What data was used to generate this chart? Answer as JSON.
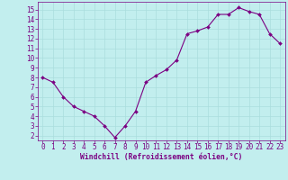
{
  "x": [
    0,
    1,
    2,
    3,
    4,
    5,
    6,
    7,
    8,
    9,
    10,
    11,
    12,
    13,
    14,
    15,
    16,
    17,
    18,
    19,
    20,
    21,
    22,
    23
  ],
  "y": [
    8.0,
    7.5,
    6.0,
    5.0,
    4.5,
    4.0,
    3.0,
    1.8,
    3.0,
    4.5,
    7.5,
    8.2,
    8.8,
    9.8,
    12.5,
    12.8,
    13.2,
    14.5,
    14.5,
    15.2,
    14.8,
    14.5,
    12.5,
    11.5
  ],
  "line_color": "#7B0082",
  "marker": "D",
  "marker_size": 2.0,
  "bg_color": "#c2eeee",
  "grid_color": "#aadddd",
  "xlabel": "Windchill (Refroidissement éolien,°C)",
  "xlabel_color": "#7B0082",
  "tick_color": "#7B0082",
  "ylim": [
    1.5,
    15.8
  ],
  "xlim": [
    -0.5,
    23.5
  ],
  "yticks": [
    2,
    3,
    4,
    5,
    6,
    7,
    8,
    9,
    10,
    11,
    12,
    13,
    14,
    15
  ],
  "xticks": [
    0,
    1,
    2,
    3,
    4,
    5,
    6,
    7,
    8,
    9,
    10,
    11,
    12,
    13,
    14,
    15,
    16,
    17,
    18,
    19,
    20,
    21,
    22,
    23
  ],
  "tick_fontsize": 5.5,
  "xlabel_fontsize": 5.8,
  "grid_linewidth": 0.5
}
